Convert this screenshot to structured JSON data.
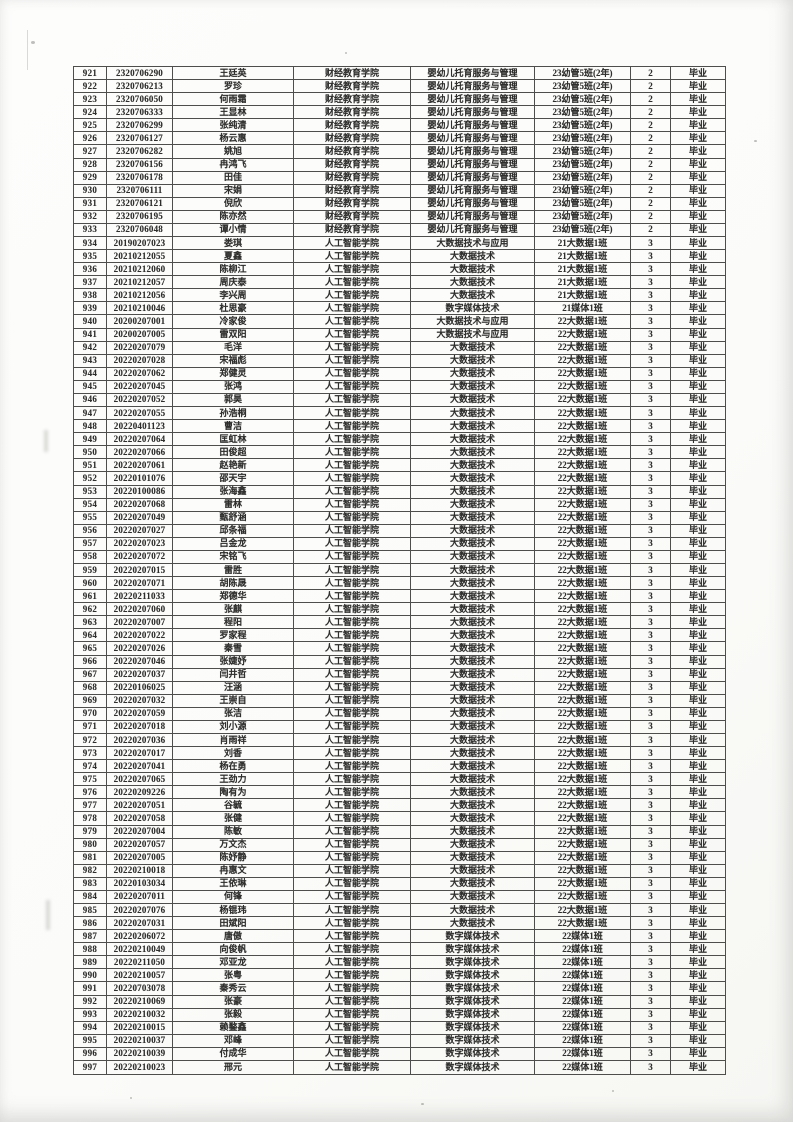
{
  "page": {
    "kind": "scanned graduation roster page",
    "status_color": "#2e2e2c",
    "paper_color": "#fdfdfc",
    "grid_color": "#4e4e4c"
  },
  "table": {
    "has_header_row": false,
    "rows": [
      [
        "921",
        "2320706290",
        "王廷英",
        "财经教育学院",
        "婴幼儿托育服务与管理",
        "23幼管5班(2年)",
        "2",
        "毕业"
      ],
      [
        "922",
        "2320706213",
        "罗珍",
        "财经教育学院",
        "婴幼儿托育服务与管理",
        "23幼管5班(2年)",
        "2",
        "毕业"
      ],
      [
        "923",
        "2320706050",
        "何雨霜",
        "财经教育学院",
        "婴幼儿托育服务与管理",
        "23幼管5班(2年)",
        "2",
        "毕业"
      ],
      [
        "924",
        "2320706333",
        "王显林",
        "财经教育学院",
        "婴幼儿托育服务与管理",
        "23幼管5班(2年)",
        "2",
        "毕业"
      ],
      [
        "925",
        "2320706299",
        "张纯清",
        "财经教育学院",
        "婴幼儿托育服务与管理",
        "23幼管5班(2年)",
        "2",
        "毕业"
      ],
      [
        "926",
        "2320706127",
        "杨云惠",
        "财经教育学院",
        "婴幼儿托育服务与管理",
        "23幼管5班(2年)",
        "2",
        "毕业"
      ],
      [
        "927",
        "2320706282",
        "姚旭",
        "财经教育学院",
        "婴幼儿托育服务与管理",
        "23幼管5班(2年)",
        "2",
        "毕业"
      ],
      [
        "928",
        "2320706156",
        "冉鸿飞",
        "财经教育学院",
        "婴幼儿托育服务与管理",
        "23幼管5班(2年)",
        "2",
        "毕业"
      ],
      [
        "929",
        "2320706178",
        "田佳",
        "财经教育学院",
        "婴幼儿托育服务与管理",
        "23幼管5班(2年)",
        "2",
        "毕业"
      ],
      [
        "930",
        "2320706111",
        "宋娟",
        "财经教育学院",
        "婴幼儿托育服务与管理",
        "23幼管5班(2年)",
        "2",
        "毕业"
      ],
      [
        "931",
        "2320706121",
        "倪欣",
        "财经教育学院",
        "婴幼儿托育服务与管理",
        "23幼管5班(2年)",
        "2",
        "毕业"
      ],
      [
        "932",
        "2320706195",
        "陈亦然",
        "财经教育学院",
        "婴幼儿托育服务与管理",
        "23幼管5班(2年)",
        "2",
        "毕业"
      ],
      [
        "933",
        "2320706048",
        "谭小情",
        "财经教育学院",
        "婴幼儿托育服务与管理",
        "23幼管5班(2年)",
        "2",
        "毕业"
      ],
      [
        "934",
        "20190207023",
        "娄琪",
        "人工智能学院",
        "大数据技术与应用",
        "21大数据1班",
        "3",
        "毕业"
      ],
      [
        "935",
        "20210212055",
        "夏鑫",
        "人工智能学院",
        "大数据技术",
        "21大数据1班",
        "3",
        "毕业"
      ],
      [
        "936",
        "20210212060",
        "陈柳江",
        "人工智能学院",
        "大数据技术",
        "21大数据1班",
        "3",
        "毕业"
      ],
      [
        "937",
        "20210212057",
        "周庆泰",
        "人工智能学院",
        "大数据技术",
        "21大数据1班",
        "3",
        "毕业"
      ],
      [
        "938",
        "20210212056",
        "李兴周",
        "人工智能学院",
        "大数据技术",
        "21大数据1班",
        "3",
        "毕业"
      ],
      [
        "939",
        "20210210046",
        "杜思豪",
        "人工智能学院",
        "数字媒体技术",
        "21媒体1班",
        "3",
        "毕业"
      ],
      [
        "940",
        "20200207001",
        "冷家俊",
        "人工智能学院",
        "大数据技术与应用",
        "22大数据1班",
        "3",
        "毕业"
      ],
      [
        "941",
        "20200207005",
        "雷双阳",
        "人工智能学院",
        "大数据技术与应用",
        "22大数据1班",
        "3",
        "毕业"
      ],
      [
        "942",
        "20220207079",
        "毛洋",
        "人工智能学院",
        "大数据技术",
        "22大数据1班",
        "3",
        "毕业"
      ],
      [
        "943",
        "20220207028",
        "宋福彪",
        "人工智能学院",
        "大数据技术",
        "22大数据1班",
        "3",
        "毕业"
      ],
      [
        "944",
        "20220207062",
        "郑健灵",
        "人工智能学院",
        "大数据技术",
        "22大数据1班",
        "3",
        "毕业"
      ],
      [
        "945",
        "20220207045",
        "张鸿",
        "人工智能学院",
        "大数据技术",
        "22大数据1班",
        "3",
        "毕业"
      ],
      [
        "946",
        "20220207052",
        "郭昊",
        "人工智能学院",
        "大数据技术",
        "22大数据1班",
        "3",
        "毕业"
      ],
      [
        "947",
        "20220207055",
        "孙浩桐",
        "人工智能学院",
        "大数据技术",
        "22大数据1班",
        "3",
        "毕业"
      ],
      [
        "948",
        "20220401123",
        "曹洁",
        "人工智能学院",
        "大数据技术",
        "22大数据1班",
        "3",
        "毕业"
      ],
      [
        "949",
        "20220207064",
        "匡虹林",
        "人工智能学院",
        "大数据技术",
        "22大数据1班",
        "3",
        "毕业"
      ],
      [
        "950",
        "20220207066",
        "田俊超",
        "人工智能学院",
        "大数据技术",
        "22大数据1班",
        "3",
        "毕业"
      ],
      [
        "951",
        "20220207061",
        "赵艳新",
        "人工智能学院",
        "大数据技术",
        "22大数据1班",
        "3",
        "毕业"
      ],
      [
        "952",
        "20220101076",
        "邵天宇",
        "人工智能学院",
        "大数据技术",
        "22大数据1班",
        "3",
        "毕业"
      ],
      [
        "953",
        "20220100086",
        "张海鑫",
        "人工智能学院",
        "大数据技术",
        "22大数据1班",
        "3",
        "毕业"
      ],
      [
        "954",
        "20220207068",
        "雷林",
        "人工智能学院",
        "大数据技术",
        "22大数据1班",
        "3",
        "毕业"
      ],
      [
        "955",
        "20220207049",
        "甄舒涵",
        "人工智能学院",
        "大数据技术",
        "22大数据1班",
        "3",
        "毕业"
      ],
      [
        "956",
        "20220207027",
        "邱条福",
        "人工智能学院",
        "大数据技术",
        "22大数据1班",
        "3",
        "毕业"
      ],
      [
        "957",
        "20220207023",
        "吕金龙",
        "人工智能学院",
        "大数据技术",
        "22大数据1班",
        "3",
        "毕业"
      ],
      [
        "958",
        "20220207072",
        "宋铭飞",
        "人工智能学院",
        "大数据技术",
        "22大数据1班",
        "3",
        "毕业"
      ],
      [
        "959",
        "20220207015",
        "雷胜",
        "人工智能学院",
        "大数据技术",
        "22大数据1班",
        "3",
        "毕业"
      ],
      [
        "960",
        "20220207071",
        "胡陈晟",
        "人工智能学院",
        "大数据技术",
        "22大数据1班",
        "3",
        "毕业"
      ],
      [
        "961",
        "20220211033",
        "郑德华",
        "人工智能学院",
        "大数据技术",
        "22大数据1班",
        "3",
        "毕业"
      ],
      [
        "962",
        "20220207060",
        "张麒",
        "人工智能学院",
        "大数据技术",
        "22大数据1班",
        "3",
        "毕业"
      ],
      [
        "963",
        "20220207007",
        "程阳",
        "人工智能学院",
        "大数据技术",
        "22大数据1班",
        "3",
        "毕业"
      ],
      [
        "964",
        "20220207022",
        "罗家程",
        "人工智能学院",
        "大数据技术",
        "22大数据1班",
        "3",
        "毕业"
      ],
      [
        "965",
        "20220207026",
        "秦雪",
        "人工智能学院",
        "大数据技术",
        "22大数据1班",
        "3",
        "毕业"
      ],
      [
        "966",
        "20220207046",
        "张婕妤",
        "人工智能学院",
        "大数据技术",
        "22大数据1班",
        "3",
        "毕业"
      ],
      [
        "967",
        "20220207037",
        "闫井哲",
        "人工智能学院",
        "大数据技术",
        "22大数据1班",
        "3",
        "毕业"
      ],
      [
        "968",
        "20220106025",
        "汪涵",
        "人工智能学院",
        "大数据技术",
        "22大数据1班",
        "3",
        "毕业"
      ],
      [
        "969",
        "20220207032",
        "王崇自",
        "人工智能学院",
        "大数据技术",
        "22大数据1班",
        "3",
        "毕业"
      ],
      [
        "970",
        "20220207059",
        "张洁",
        "人工智能学院",
        "大数据技术",
        "22大数据1班",
        "3",
        "毕业"
      ],
      [
        "971",
        "20220207018",
        "刘小源",
        "人工智能学院",
        "大数据技术",
        "22大数据1班",
        "3",
        "毕业"
      ],
      [
        "972",
        "20220207036",
        "肖雨祥",
        "人工智能学院",
        "大数据技术",
        "22大数据1班",
        "3",
        "毕业"
      ],
      [
        "973",
        "20220207017",
        "刘香",
        "人工智能学院",
        "大数据技术",
        "22大数据1班",
        "3",
        "毕业"
      ],
      [
        "974",
        "20220207041",
        "杨在勇",
        "人工智能学院",
        "大数据技术",
        "22大数据1班",
        "3",
        "毕业"
      ],
      [
        "975",
        "20220207065",
        "王劲力",
        "人工智能学院",
        "大数据技术",
        "22大数据1班",
        "3",
        "毕业"
      ],
      [
        "976",
        "20220209226",
        "陶有为",
        "人工智能学院",
        "大数据技术",
        "22大数据1班",
        "3",
        "毕业"
      ],
      [
        "977",
        "20220207051",
        "谷毓",
        "人工智能学院",
        "大数据技术",
        "22大数据1班",
        "3",
        "毕业"
      ],
      [
        "978",
        "20220207058",
        "张健",
        "人工智能学院",
        "大数据技术",
        "22大数据1班",
        "3",
        "毕业"
      ],
      [
        "979",
        "20220207004",
        "陈敏",
        "人工智能学院",
        "大数据技术",
        "22大数据1班",
        "3",
        "毕业"
      ],
      [
        "980",
        "20220207057",
        "万文杰",
        "人工智能学院",
        "大数据技术",
        "22大数据1班",
        "3",
        "毕业"
      ],
      [
        "981",
        "20220207005",
        "陈妤静",
        "人工智能学院",
        "大数据技术",
        "22大数据1班",
        "3",
        "毕业"
      ],
      [
        "982",
        "20220210018",
        "冉惠文",
        "人工智能学院",
        "大数据技术",
        "22大数据1班",
        "3",
        "毕业"
      ],
      [
        "983",
        "20220103034",
        "王依琳",
        "人工智能学院",
        "大数据技术",
        "22大数据1班",
        "3",
        "毕业"
      ],
      [
        "984",
        "20220207011",
        "何锋",
        "人工智能学院",
        "大数据技术",
        "22大数据1班",
        "3",
        "毕业"
      ],
      [
        "985",
        "20220207076",
        "杨锟玮",
        "人工智能学院",
        "大数据技术",
        "22大数据1班",
        "3",
        "毕业"
      ],
      [
        "986",
        "20220207031",
        "田斌阳",
        "人工智能学院",
        "大数据技术",
        "22大数据1班",
        "3",
        "毕业"
      ],
      [
        "987",
        "20220206072",
        "唐傲",
        "人工智能学院",
        "数字媒体技术",
        "22媒体1班",
        "3",
        "毕业"
      ],
      [
        "988",
        "20220210049",
        "向俊帆",
        "人工智能学院",
        "数字媒体技术",
        "22媒体1班",
        "3",
        "毕业"
      ],
      [
        "989",
        "20220211050",
        "邓亚龙",
        "人工智能学院",
        "数字媒体技术",
        "22媒体1班",
        "3",
        "毕业"
      ],
      [
        "990",
        "20220210057",
        "张粤",
        "人工智能学院",
        "数字媒体技术",
        "22媒体1班",
        "3",
        "毕业"
      ],
      [
        "991",
        "20220703078",
        "秦秀云",
        "人工智能学院",
        "数字媒体技术",
        "22媒体1班",
        "3",
        "毕业"
      ],
      [
        "992",
        "20220210069",
        "张豪",
        "人工智能学院",
        "数字媒体技术",
        "22媒体1班",
        "3",
        "毕业"
      ],
      [
        "993",
        "20220210032",
        "张毅",
        "人工智能学院",
        "数字媒体技术",
        "22媒体1班",
        "3",
        "毕业"
      ],
      [
        "994",
        "20220210015",
        "赖鍪鑫",
        "人工智能学院",
        "数字媒体技术",
        "22媒体1班",
        "3",
        "毕业"
      ],
      [
        "995",
        "20220210037",
        "邓峰",
        "人工智能学院",
        "数字媒体技术",
        "22媒体1班",
        "3",
        "毕业"
      ],
      [
        "996",
        "20220210039",
        "付成华",
        "人工智能学院",
        "数字媒体技术",
        "22媒体1班",
        "3",
        "毕业"
      ],
      [
        "997",
        "20220210023",
        "邢元",
        "人工智能学院",
        "数字媒体技术",
        "22媒体1班",
        "3",
        "毕业"
      ]
    ]
  }
}
